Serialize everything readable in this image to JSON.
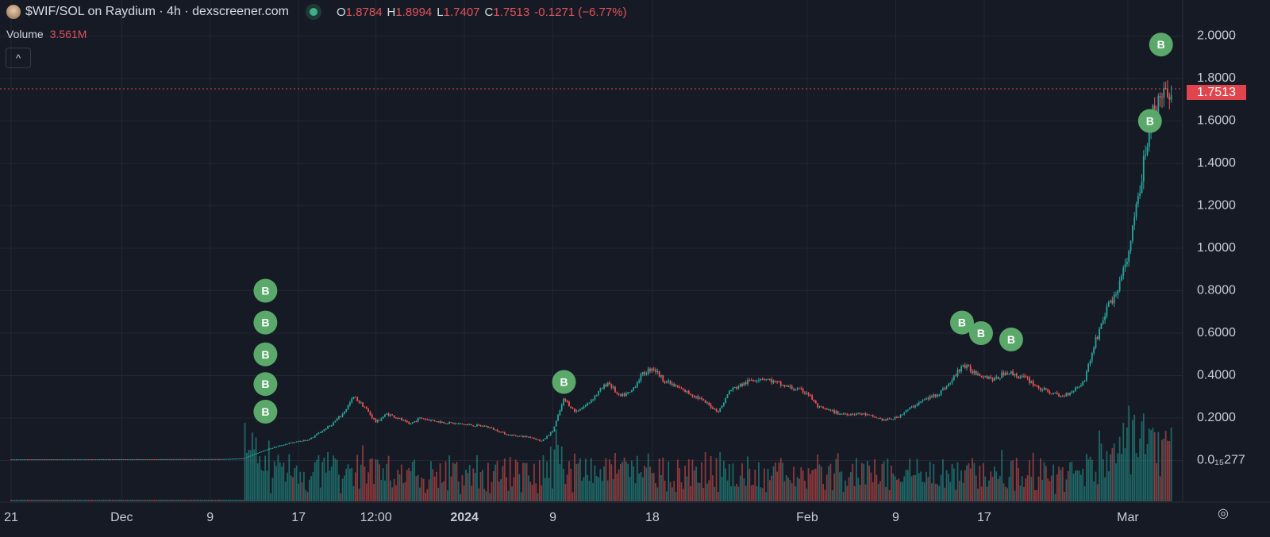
{
  "header": {
    "title": "$WIF/SOL on Raydium · 4h · dexscreener.com",
    "o_label": "O",
    "o": "1.8784",
    "h_label": "H",
    "h": "1.8994",
    "l_label": "L",
    "l": "1.7407",
    "c_label": "C",
    "c": "1.7513",
    "change": "-0.1271 (−6.77%)",
    "volume_label": "Volume",
    "volume": "3.561M",
    "collapse": "^"
  },
  "colors": {
    "up": "#26a69a",
    "down": "#ef5350",
    "marker": "#5aa96a",
    "price_line": "#e0444d",
    "bg": "#161a25",
    "grid": "#232733"
  },
  "chart_data": {
    "type": "candlestick",
    "y_ticks": [
      "2.0000",
      "1.8000",
      "1.6000",
      "1.4000",
      "1.2000",
      "1.0000",
      "0.8000",
      "0.6000",
      "0.4000",
      "0.2000",
      "0.0₁₅277"
    ],
    "y_tick_values": [
      2.0,
      1.8,
      1.6,
      1.4,
      1.2,
      1.0,
      0.8,
      0.6,
      0.4,
      0.2,
      0.0
    ],
    "ylim": [
      0,
      2.0
    ],
    "x_ticks": [
      {
        "label": "21",
        "date": "2023-11-21"
      },
      {
        "label": "Dec",
        "date": "2023-12-01"
      },
      {
        "label": "9",
        "date": "2023-12-09"
      },
      {
        "label": "17",
        "date": "2023-12-17"
      },
      {
        "label": "12:00",
        "date": "2023-12-24"
      },
      {
        "label": "2024",
        "date": "2024-01-01",
        "bold": true
      },
      {
        "label": "9",
        "date": "2024-01-09"
      },
      {
        "label": "18",
        "date": "2024-01-18"
      },
      {
        "label": "Feb",
        "date": "2024-02-01"
      },
      {
        "label": "9",
        "date": "2024-02-09"
      },
      {
        "label": "17",
        "date": "2024-02-17"
      },
      {
        "label": "Mar",
        "date": "2024-03-01"
      }
    ],
    "current_price": 1.7513,
    "current_price_label": "1.7513",
    "closes": [
      [
        "2023-11-21",
        0.005
      ],
      [
        "2023-12-10",
        0.006
      ],
      [
        "2023-12-12",
        0.01
      ],
      [
        "2023-12-14",
        0.05
      ],
      [
        "2023-12-16",
        0.08
      ],
      [
        "2023-12-18",
        0.1
      ],
      [
        "2023-12-20",
        0.17
      ],
      [
        "2023-12-21",
        0.22
      ],
      [
        "2023-12-22",
        0.3
      ],
      [
        "2023-12-23",
        0.25
      ],
      [
        "2023-12-24",
        0.18
      ],
      [
        "2023-12-25",
        0.22
      ],
      [
        "2023-12-26",
        0.2
      ],
      [
        "2023-12-27",
        0.17
      ],
      [
        "2023-12-28",
        0.2
      ],
      [
        "2023-12-30",
        0.18
      ],
      [
        "2024-01-01",
        0.17
      ],
      [
        "2024-01-03",
        0.16
      ],
      [
        "2024-01-05",
        0.12
      ],
      [
        "2024-01-07",
        0.11
      ],
      [
        "2024-01-08",
        0.09
      ],
      [
        "2024-01-09",
        0.14
      ],
      [
        "2024-01-10",
        0.29
      ],
      [
        "2024-01-11",
        0.23
      ],
      [
        "2024-01-12",
        0.26
      ],
      [
        "2024-01-14",
        0.37
      ],
      [
        "2024-01-15",
        0.3
      ],
      [
        "2024-01-16",
        0.32
      ],
      [
        "2024-01-17",
        0.4
      ],
      [
        "2024-01-18",
        0.44
      ],
      [
        "2024-01-19",
        0.38
      ],
      [
        "2024-01-20",
        0.35
      ],
      [
        "2024-01-22",
        0.3
      ],
      [
        "2024-01-24",
        0.23
      ],
      [
        "2024-01-25",
        0.33
      ],
      [
        "2024-01-27",
        0.38
      ],
      [
        "2024-01-28",
        0.39
      ],
      [
        "2024-01-30",
        0.35
      ],
      [
        "2024-02-01",
        0.32
      ],
      [
        "2024-02-02",
        0.25
      ],
      [
        "2024-02-04",
        0.22
      ],
      [
        "2024-02-06",
        0.22
      ],
      [
        "2024-02-08",
        0.19
      ],
      [
        "2024-02-09",
        0.2
      ],
      [
        "2024-02-11",
        0.27
      ],
      [
        "2024-02-13",
        0.32
      ],
      [
        "2024-02-14",
        0.37
      ],
      [
        "2024-02-15",
        0.45
      ],
      [
        "2024-02-16",
        0.42
      ],
      [
        "2024-02-18",
        0.38
      ],
      [
        "2024-02-19",
        0.42
      ],
      [
        "2024-02-21",
        0.38
      ],
      [
        "2024-02-22",
        0.34
      ],
      [
        "2024-02-24",
        0.3
      ],
      [
        "2024-02-25",
        0.33
      ],
      [
        "2024-02-26",
        0.37
      ],
      [
        "2024-02-27",
        0.55
      ],
      [
        "2024-02-28",
        0.7
      ],
      [
        "2024-02-29",
        0.8
      ],
      [
        "2024-03-01",
        0.95
      ],
      [
        "2024-03-02",
        1.25
      ],
      [
        "2024-03-03",
        1.6
      ],
      [
        "2024-03-04",
        1.7
      ],
      [
        "2024-03-05",
        1.75
      ]
    ],
    "markers": [
      {
        "label": "B",
        "date": "2023-12-14",
        "price": 0.8
      },
      {
        "label": "B",
        "date": "2023-12-14",
        "price": 0.65
      },
      {
        "label": "B",
        "date": "2023-12-14",
        "price": 0.5
      },
      {
        "label": "B",
        "date": "2023-12-14",
        "price": 0.36
      },
      {
        "label": "B",
        "date": "2023-12-14",
        "price": 0.23
      },
      {
        "label": "B",
        "date": "2024-01-10",
        "price": 0.37
      },
      {
        "label": "B",
        "date": "2024-02-15",
        "price": 0.65
      },
      {
        "label": "B",
        "date": "2024-02-15",
        "price": 0.6
      },
      {
        "label": "B",
        "date": "2024-02-16",
        "price": 0.57
      },
      {
        "label": "B",
        "date": "2024-03-03",
        "price": 1.6
      },
      {
        "label": "B",
        "date": "2024-03-04",
        "price": 1.96
      }
    ]
  }
}
